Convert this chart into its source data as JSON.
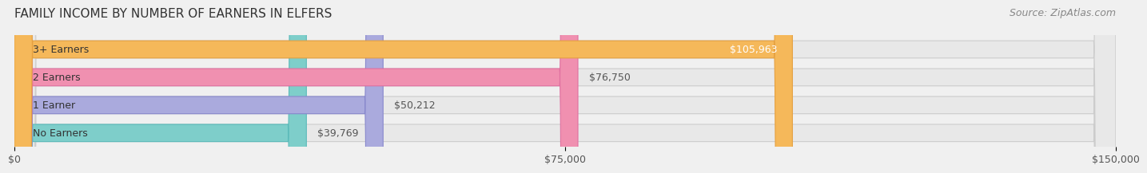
{
  "title": "FAMILY INCOME BY NUMBER OF EARNERS IN ELFERS",
  "source": "Source: ZipAtlas.com",
  "categories": [
    "No Earners",
    "1 Earner",
    "2 Earners",
    "3+ Earners"
  ],
  "values": [
    39769,
    50212,
    76750,
    105963
  ],
  "bar_colors": [
    "#7ececa",
    "#aaaadd",
    "#f090b0",
    "#f5b85a"
  ],
  "bar_edge_colors": [
    "#5bbaba",
    "#8888cc",
    "#e070a0",
    "#e5a040"
  ],
  "label_colors": [
    "#333333",
    "#333333",
    "#333333",
    "#ffffff"
  ],
  "value_labels": [
    "$39,769",
    "$50,212",
    "$76,750",
    "$105,963"
  ],
  "xlim": [
    0,
    150000
  ],
  "xticks": [
    0,
    75000,
    150000
  ],
  "xticklabels": [
    "$0",
    "$75,000",
    "$150,000"
  ],
  "background_color": "#f0f0f0",
  "bar_bg_color": "#e8e8e8",
  "title_fontsize": 11,
  "source_fontsize": 9,
  "label_fontsize": 9,
  "value_fontsize": 9,
  "tick_fontsize": 9
}
